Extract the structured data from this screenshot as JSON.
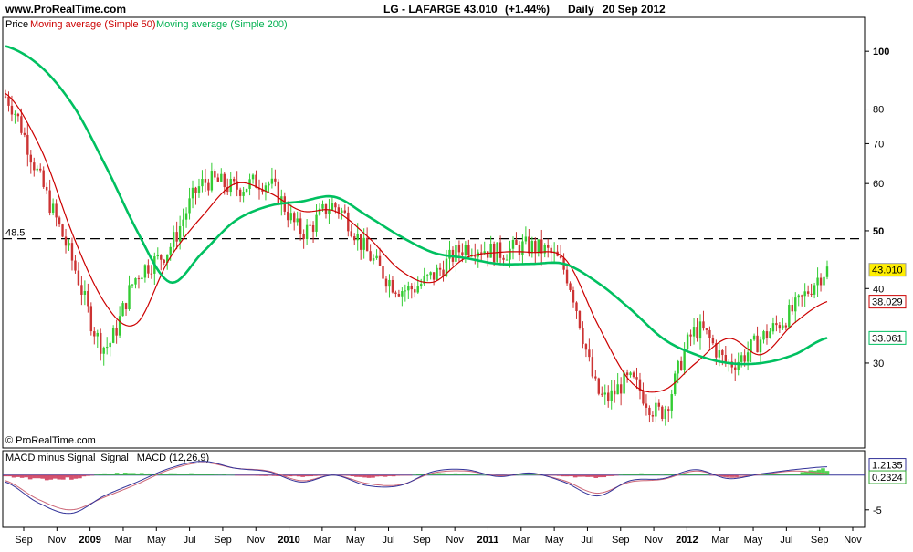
{
  "header": {
    "site": "www.ProRealTime.com",
    "ticker": "LG - LAFARGE",
    "price": "43.010",
    "change": "(+1.44%)",
    "period": "Daily",
    "date": "20 Sep 2012"
  },
  "legend": {
    "price_label": "Price",
    "ma50_label": "Moving average (Simple 50)",
    "ma200_label": "Moving average (Simple 200)"
  },
  "copyright": "© ProRealTime.com",
  "colors": {
    "background": "#ffffff",
    "candle_up": "#33cc33",
    "candle_down": "#cc3333",
    "ma50": "#cc0000",
    "ma200": "#00c060",
    "macd_line": "#333399",
    "signal_line": "#cc6677",
    "hist_pos": "#33cc33",
    "hist_neg": "#cc3355",
    "price_badge": "#ffee00"
  },
  "chart_data": [
    {
      "type": "line",
      "panel": "price",
      "scale": "log",
      "ylim": [
        22,
        112
      ],
      "y_ticks": [
        30,
        40,
        50,
        60,
        70,
        80,
        100
      ],
      "x_labels": [
        "Sep",
        "Nov",
        "2009",
        "Mar",
        "May",
        "Jul",
        "Sep",
        "Nov",
        "2010",
        "Mar",
        "May",
        "Jul",
        "Sep",
        "Nov",
        "2011",
        "Mar",
        "May",
        "Jul",
        "Sep",
        "Nov",
        "2012",
        "Mar",
        "May",
        "Jul",
        "Sep",
        "Nov"
      ],
      "x": [
        "2008-08",
        "2008-10",
        "2008-12",
        "2009-02",
        "2009-04",
        "2009-06",
        "2009-08",
        "2009-10",
        "2009-12",
        "2010-02",
        "2010-04",
        "2010-06",
        "2010-08",
        "2010-10",
        "2010-12",
        "2011-02",
        "2011-04",
        "2011-06",
        "2011-08",
        "2011-10",
        "2011-12",
        "2012-02",
        "2012-04",
        "2012-06",
        "2012-08",
        "2012-09"
      ],
      "series": [
        {
          "name": "Price",
          "style": "candlestick",
          "values": [
            84,
            62,
            45,
            32,
            42,
            47,
            60,
            59,
            60,
            50,
            55,
            46,
            40,
            42,
            47,
            46,
            47,
            43,
            27,
            28,
            25,
            34,
            30,
            33,
            37,
            43.01
          ]
        },
        {
          "name": "Moving average (Simple 50)",
          "values": [
            85,
            70,
            50,
            38,
            35,
            45,
            53,
            60,
            58,
            54,
            54,
            49,
            43,
            41,
            45,
            46,
            46,
            45,
            35,
            28,
            27,
            30,
            33,
            31,
            35,
            38.029
          ]
        },
        {
          "name": "Moving average (Simple 200)",
          "values": [
            102,
            95,
            82,
            65,
            50,
            41,
            46,
            52,
            55,
            56,
            57,
            53,
            49,
            46,
            45,
            44,
            44,
            44,
            41,
            37,
            33,
            31,
            30,
            30,
            31,
            33.061
          ]
        }
      ],
      "reference_line": {
        "value": 48.5,
        "label": "48.5",
        "style": "dashed"
      },
      "last_value_labels": [
        "43.010",
        "38.029",
        "33.061"
      ]
    },
    {
      "type": "area",
      "panel": "macd",
      "title": "MACD minus Signal",
      "legend": [
        "MACD minus Signal",
        "Signal",
        "MACD (12,26,9)"
      ],
      "legend_colors": [
        "#33cc33",
        "#cc6677",
        "#333399"
      ],
      "ylim": [
        -7,
        3
      ],
      "y_ticks": [
        -5
      ],
      "zero_line": 0,
      "last_value_labels": [
        "1.2135",
        "0.2324"
      ],
      "series": [
        {
          "name": "MACD (12,26,9)",
          "values": [
            -1,
            -4,
            -5.5,
            -3,
            -1,
            1,
            2,
            1,
            0.5,
            -1,
            0,
            -1.5,
            -1.5,
            0.5,
            0.8,
            -0.2,
            0.3,
            -1,
            -3,
            -0.8,
            -0.5,
            0.8,
            -0.5,
            0.2,
            0.8,
            1.2135
          ]
        },
        {
          "name": "Signal",
          "values": [
            -0.8,
            -3.5,
            -5,
            -3.2,
            -1.3,
            0.8,
            1.8,
            1,
            0.6,
            -0.8,
            0,
            -1.2,
            -1.4,
            0.3,
            0.6,
            -0.1,
            0.2,
            -0.8,
            -2.6,
            -1,
            -0.6,
            0.6,
            -0.3,
            0.1,
            0.6,
            0.2324
          ]
        },
        {
          "name": "MACD minus Signal",
          "values": [
            -0.2,
            -0.5,
            -0.5,
            0.2,
            0.3,
            0.2,
            0.2,
            0,
            -0.1,
            -0.2,
            0,
            -0.3,
            -0.1,
            0.2,
            0.2,
            -0.1,
            0.1,
            -0.2,
            -0.4,
            0.2,
            0.1,
            0.2,
            -0.2,
            0.1,
            0.2,
            0.98
          ]
        }
      ]
    }
  ]
}
